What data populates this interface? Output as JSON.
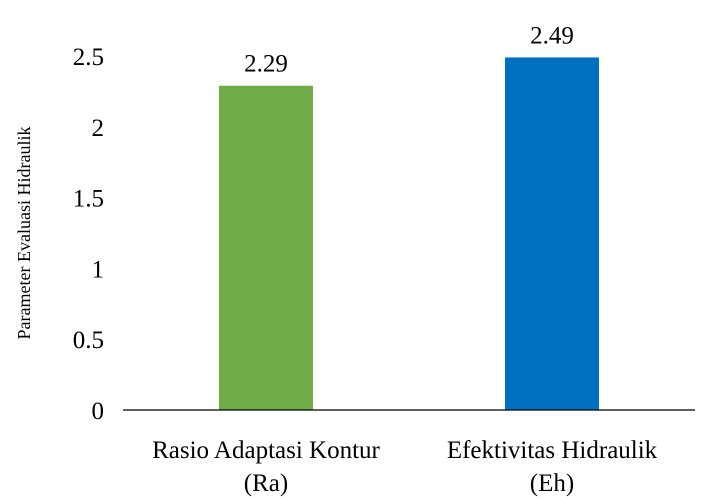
{
  "chart_data": {
    "type": "bar",
    "title": "",
    "xlabel": "",
    "ylabel": "Parameter Evaluasi Hidraulik",
    "categories": [
      [
        "Rasio Adaptasi Kontur",
        "(Ra)"
      ],
      [
        "Efektivitas Hidraulik",
        "(Eh)"
      ]
    ],
    "values": [
      2.29,
      2.49
    ],
    "value_labels": [
      "2.29",
      "2.49"
    ],
    "bar_colors": [
      "#70AD47",
      "#0070C0"
    ],
    "ylim": [
      0,
      2.5
    ],
    "yticks": [
      "0",
      "0.5",
      "1",
      "1.5",
      "2",
      "2.5"
    ],
    "ytick_values": [
      0,
      0.5,
      1,
      1.5,
      2,
      2.5
    ],
    "grid": false,
    "legend": "none"
  }
}
